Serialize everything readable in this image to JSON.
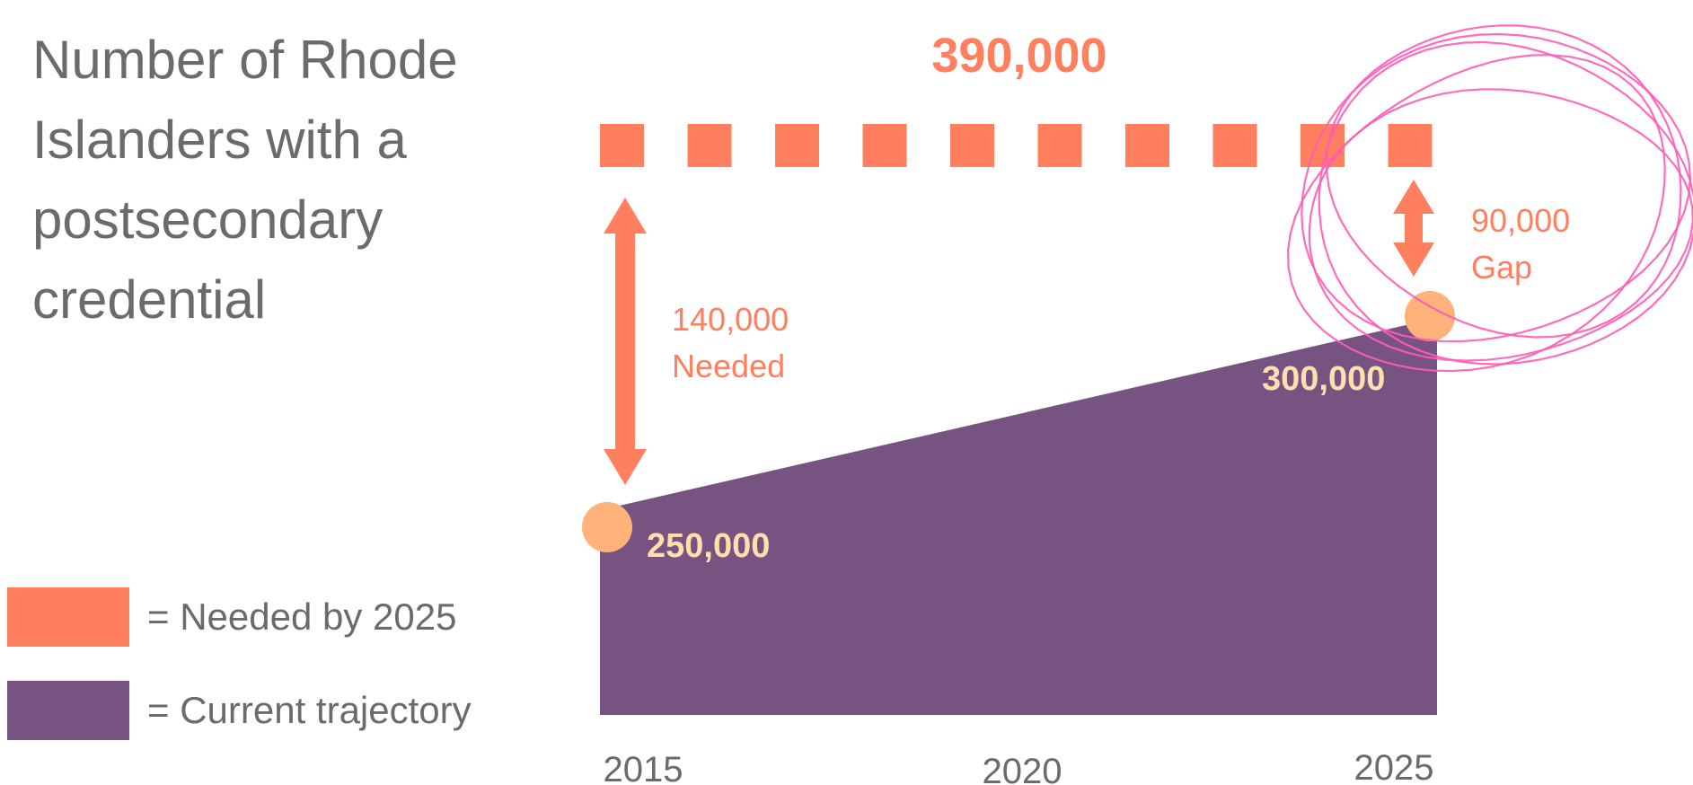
{
  "title": "Number of Rhode Islanders with a postsecondary credential",
  "colors": {
    "needed": "#FF7F5E",
    "current": "#775382",
    "marker": "#FFB27A",
    "current_label": "#FFDFAE",
    "axis_text": "#6b6b6b",
    "annotation_circle": "#FF5CB5"
  },
  "legend": [
    {
      "label": "= Needed by 2025",
      "color": "#FF7F5E"
    },
    {
      "label": "= Current trajectory",
      "color": "#775382"
    }
  ],
  "chart_data": {
    "type": "area",
    "x": [
      2015,
      2025
    ],
    "xticks": [
      "2015",
      "2020",
      "2025"
    ],
    "xlim": [
      2015,
      2025
    ],
    "ylim": [
      0,
      400000
    ],
    "series": [
      {
        "name": "Needed by 2025",
        "style": "dashed-line",
        "values": [
          390000,
          390000
        ]
      },
      {
        "name": "Current trajectory",
        "style": "area",
        "values": [
          250000,
          300000
        ]
      }
    ],
    "data_labels": {
      "needed": "390,000",
      "current_start": "250,000",
      "current_end": "300,000"
    },
    "annotations": [
      {
        "value": "140,000",
        "text": "Needed",
        "at_x": 2015,
        "from": 250000,
        "to": 390000
      },
      {
        "value": "90,000",
        "text": "Gap",
        "at_x": 2025,
        "from": 300000,
        "to": 390000
      }
    ],
    "highlight": {
      "shape": "hand-drawn-circle",
      "around": "Gap"
    }
  }
}
